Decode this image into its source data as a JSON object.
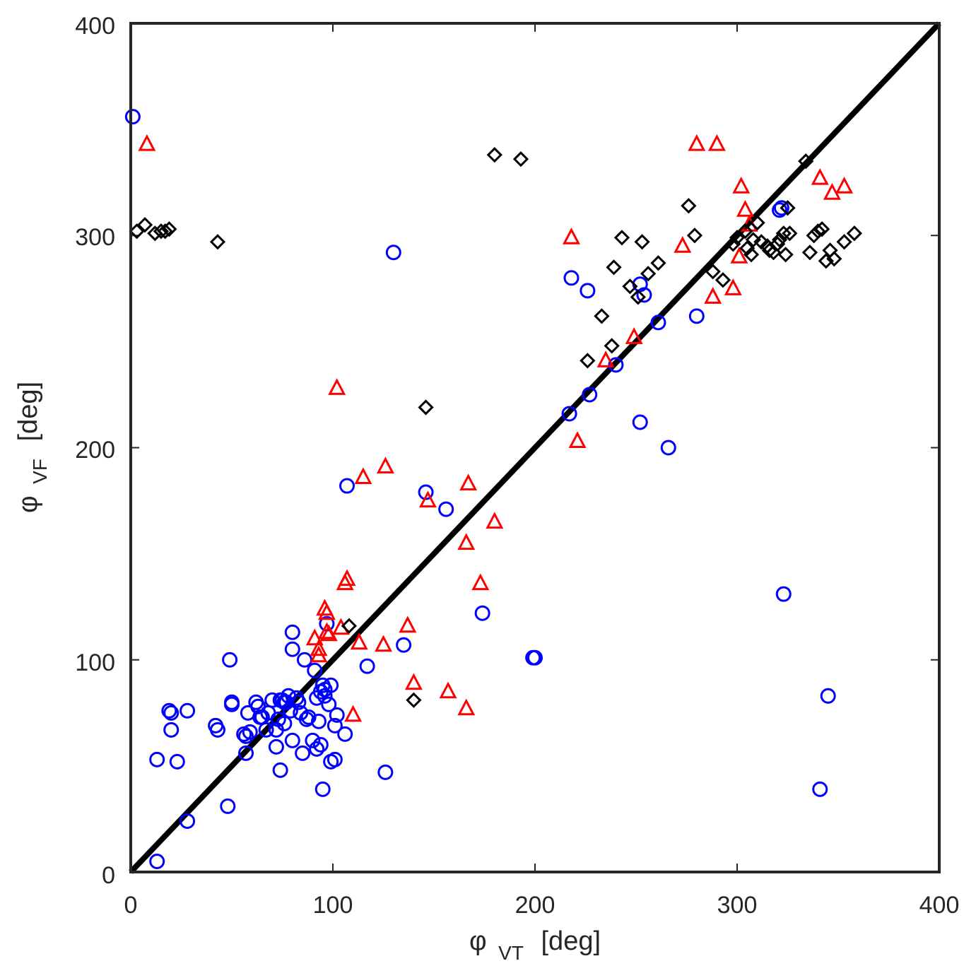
{
  "chart_data": {
    "type": "scatter",
    "title": "",
    "xlabel": {
      "symbol": "φ",
      "sub": "VT",
      "unit": "[deg]"
    },
    "ylabel": {
      "symbol": "φ",
      "sub": "VF",
      "unit": "[deg]"
    },
    "xlim": [
      0,
      400
    ],
    "ylim": [
      0,
      400
    ],
    "xticks": [
      "0",
      "100",
      "200",
      "300",
      "400"
    ],
    "yticks": [
      "0",
      "100",
      "200",
      "300",
      "400"
    ],
    "grid": false,
    "reference_line": {
      "x": [
        0,
        400
      ],
      "y": [
        0,
        400
      ],
      "color": "#000000"
    },
    "series": [
      {
        "name": "circles",
        "marker": "circle",
        "color": "#0000ff",
        "x": [
          1,
          13,
          13,
          19,
          20,
          20,
          23,
          28,
          28,
          42,
          43,
          48,
          49,
          50,
          50,
          56,
          57,
          57,
          58,
          59,
          62,
          63,
          64,
          65,
          67,
          68,
          70,
          72,
          72,
          73,
          74,
          74,
          75,
          76,
          76,
          77,
          78,
          79,
          80,
          80,
          80,
          82,
          83,
          84,
          85,
          86,
          87,
          88,
          90,
          91,
          92,
          92,
          93,
          94,
          94,
          95,
          95,
          96,
          96,
          97,
          98,
          99,
          99,
          101,
          101,
          102,
          106,
          107,
          117,
          126,
          130,
          135,
          146,
          156,
          174,
          199,
          200,
          217,
          218,
          226,
          227,
          240,
          252,
          252,
          254,
          261,
          266,
          280,
          321,
          322,
          323,
          341,
          345
        ],
        "y": [
          356,
          5,
          53,
          76,
          67,
          75,
          52,
          76,
          24,
          69,
          67,
          31,
          100,
          79,
          80,
          65,
          56,
          64,
          75,
          66,
          80,
          78,
          73,
          73,
          67,
          75,
          81,
          59,
          67,
          72,
          48,
          81,
          81,
          80,
          70,
          80,
          83,
          76,
          62,
          105,
          113,
          82,
          80,
          75,
          56,
          100,
          72,
          73,
          62,
          95,
          82,
          58,
          71,
          85,
          60,
          39,
          88,
          83,
          86,
          117,
          79,
          88,
          52,
          69,
          53,
          74,
          65,
          182,
          97,
          47,
          292,
          107,
          179,
          171,
          122,
          101,
          101,
          216,
          280,
          274,
          225,
          239,
          277,
          212,
          272,
          259,
          200,
          262,
          312,
          313,
          131,
          39,
          83
        ]
      },
      {
        "name": "triangles",
        "marker": "triangle",
        "color": "#ff0000",
        "x": [
          8,
          91,
          93,
          93,
          96,
          97,
          97,
          98,
          102,
          104,
          106,
          107,
          110,
          113,
          115,
          125,
          126,
          137,
          140,
          147,
          157,
          166,
          166,
          167,
          173,
          180,
          218,
          221,
          235,
          249,
          273,
          280,
          290,
          288,
          298,
          301,
          302,
          304,
          306,
          341,
          347,
          353
        ],
        "y": [
          343,
          110,
          105,
          102,
          124,
          122,
          113,
          112,
          228,
          115,
          136,
          138,
          74,
          108,
          186,
          107,
          191,
          116,
          89,
          175,
          85,
          155,
          77,
          183,
          136,
          165,
          299,
          203,
          241,
          252,
          295,
          343,
          343,
          271,
          275,
          290,
          323,
          312,
          305,
          327,
          320,
          323
        ]
      },
      {
        "name": "diamonds",
        "marker": "diamond",
        "color": "#000000",
        "x": [
          3,
          7,
          12,
          15,
          17,
          19,
          43,
          108,
          140,
          146,
          180,
          193,
          226,
          233,
          238,
          239,
          243,
          247,
          251,
          253,
          256,
          261,
          276,
          279,
          288,
          293,
          298,
          300,
          304,
          305,
          307,
          308,
          310,
          312,
          315,
          316,
          318,
          320,
          321,
          323,
          324,
          325,
          326,
          334,
          336,
          338,
          340,
          342,
          344,
          346,
          348,
          353,
          358
        ],
        "y": [
          302,
          305,
          301,
          302,
          302,
          303,
          297,
          116,
          81,
          219,
          338,
          336,
          241,
          262,
          248,
          285,
          299,
          276,
          271,
          297,
          282,
          287,
          314,
          300,
          283,
          279,
          296,
          299,
          302,
          294,
          291,
          298,
          306,
          297,
          295,
          293,
          292,
          296,
          298,
          301,
          291,
          313,
          301,
          335,
          292,
          300,
          302,
          303,
          288,
          293,
          289,
          297,
          301
        ]
      }
    ]
  }
}
